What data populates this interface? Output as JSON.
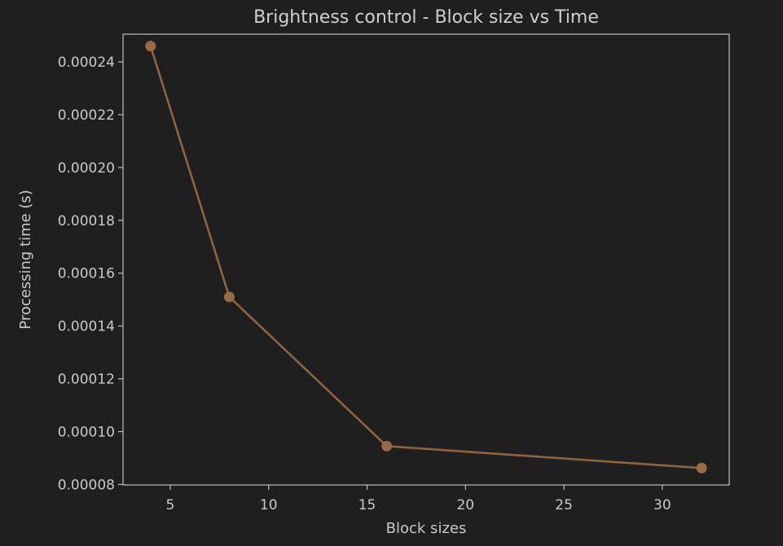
{
  "chart_data": {
    "type": "line",
    "title": "Brightness control - Block size vs Time",
    "xlabel": "Block sizes",
    "ylabel": "Processing time (s)",
    "x": [
      4,
      8,
      16,
      32
    ],
    "series": [
      {
        "values": [
          0.000246,
          0.000151,
          9.45e-05,
          8.62e-05
        ]
      }
    ],
    "xlim": [
      2.6,
      33.4
    ],
    "ylim": [
      7.98e-05,
      0.0002505
    ],
    "xticks": [
      5,
      10,
      15,
      20,
      25,
      30
    ],
    "xtick_labels": [
      "5",
      "10",
      "15",
      "20",
      "25",
      "30"
    ],
    "yticks": [
      8e-05,
      0.0001,
      0.00012,
      0.00014,
      0.00016,
      0.00018,
      0.0002,
      0.00022,
      0.00024
    ],
    "ytick_labels": [
      "0.00008",
      "0.00010",
      "0.00012",
      "0.00014",
      "0.00016",
      "0.00018",
      "0.00020",
      "0.00022",
      "0.00024"
    ],
    "grid": false,
    "marker": "circle",
    "colors": {
      "background": "#1f1f20",
      "axes": "#bdbdbd",
      "text": "#c9c9c9",
      "line": "#8e6440",
      "marker": "#9a6a43"
    }
  }
}
